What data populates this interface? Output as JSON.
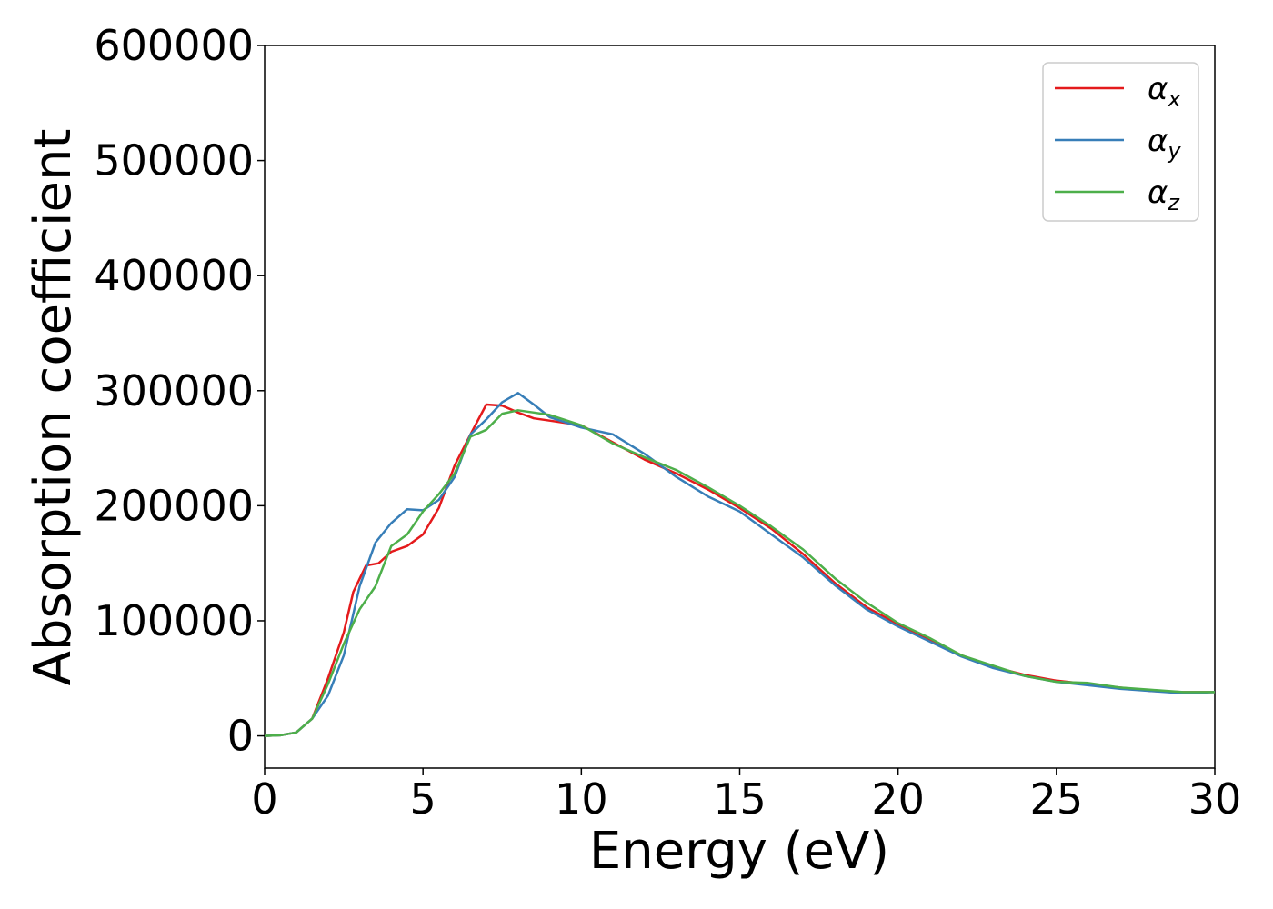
{
  "chart_data": {
    "type": "line",
    "title": "",
    "xlabel": "Energy (eV)",
    "ylabel": "Absorption coefficient",
    "xlim": [
      0,
      30
    ],
    "ylim": [
      -28000,
      600000
    ],
    "xticks": [
      0,
      5,
      10,
      15,
      20,
      25,
      30
    ],
    "xtick_labels": [
      "0",
      "5",
      "10",
      "15",
      "20",
      "25",
      "30"
    ],
    "yticks": [
      0,
      100000,
      200000,
      300000,
      400000,
      500000,
      600000
    ],
    "ytick_labels": [
      "0",
      "100000",
      "200000",
      "300000",
      "400000",
      "500000",
      "600000"
    ],
    "grid": false,
    "legend_position": "top-right",
    "series": [
      {
        "name": "α",
        "subscript": "x",
        "color": "#e41a1c",
        "points": [
          [
            0,
            0
          ],
          [
            0.5,
            500
          ],
          [
            1,
            3000
          ],
          [
            1.5,
            15000
          ],
          [
            2,
            50000
          ],
          [
            2.5,
            90000
          ],
          [
            2.8,
            125000
          ],
          [
            3.2,
            148000
          ],
          [
            3.6,
            150000
          ],
          [
            4,
            160000
          ],
          [
            4.5,
            165000
          ],
          [
            5,
            175000
          ],
          [
            5.5,
            198000
          ],
          [
            6,
            235000
          ],
          [
            6.5,
            262000
          ],
          [
            7,
            288000
          ],
          [
            7.5,
            287000
          ],
          [
            8,
            281000
          ],
          [
            8.5,
            276000
          ],
          [
            9,
            274000
          ],
          [
            10,
            270000
          ],
          [
            11,
            255000
          ],
          [
            12,
            240000
          ],
          [
            13,
            228000
          ],
          [
            14,
            214000
          ],
          [
            15,
            198000
          ],
          [
            16,
            180000
          ],
          [
            17,
            158000
          ],
          [
            18,
            133000
          ],
          [
            19,
            112000
          ],
          [
            20,
            97000
          ],
          [
            21,
            84000
          ],
          [
            22,
            70000
          ],
          [
            23,
            60000
          ],
          [
            24,
            53000
          ],
          [
            25,
            48000
          ],
          [
            26,
            45000
          ],
          [
            27,
            42000
          ],
          [
            28,
            39000
          ],
          [
            29,
            38000
          ],
          [
            30,
            38000
          ]
        ]
      },
      {
        "name": "α",
        "subscript": "y",
        "color": "#377eb8",
        "points": [
          [
            0,
            0
          ],
          [
            0.5,
            500
          ],
          [
            1,
            3000
          ],
          [
            1.5,
            15000
          ],
          [
            2,
            35000
          ],
          [
            2.5,
            70000
          ],
          [
            3,
            130000
          ],
          [
            3.5,
            168000
          ],
          [
            4,
            185000
          ],
          [
            4.5,
            197000
          ],
          [
            5,
            196000
          ],
          [
            5.5,
            205000
          ],
          [
            6,
            225000
          ],
          [
            6.5,
            262000
          ],
          [
            7,
            275000
          ],
          [
            7.5,
            290000
          ],
          [
            8,
            298000
          ],
          [
            8.5,
            288000
          ],
          [
            9,
            277000
          ],
          [
            10,
            268000
          ],
          [
            11,
            262000
          ],
          [
            12,
            245000
          ],
          [
            13,
            225000
          ],
          [
            14,
            208000
          ],
          [
            15,
            195000
          ],
          [
            16,
            175000
          ],
          [
            17,
            155000
          ],
          [
            18,
            131000
          ],
          [
            19,
            110000
          ],
          [
            20,
            95000
          ],
          [
            21,
            82000
          ],
          [
            22,
            69000
          ],
          [
            23,
            59000
          ],
          [
            24,
            52000
          ],
          [
            25,
            47000
          ],
          [
            26,
            44000
          ],
          [
            27,
            41000
          ],
          [
            28,
            39000
          ],
          [
            29,
            37000
          ],
          [
            30,
            38000
          ]
        ]
      },
      {
        "name": "α",
        "subscript": "z",
        "color": "#4daf4a",
        "points": [
          [
            0,
            0
          ],
          [
            0.5,
            500
          ],
          [
            1,
            3000
          ],
          [
            1.5,
            15000
          ],
          [
            2,
            45000
          ],
          [
            2.5,
            80000
          ],
          [
            3,
            110000
          ],
          [
            3.5,
            130000
          ],
          [
            4,
            165000
          ],
          [
            4.5,
            175000
          ],
          [
            5,
            195000
          ],
          [
            5.5,
            210000
          ],
          [
            6,
            228000
          ],
          [
            6.5,
            260000
          ],
          [
            7,
            266000
          ],
          [
            7.5,
            280000
          ],
          [
            8,
            283000
          ],
          [
            8.5,
            281000
          ],
          [
            9,
            279000
          ],
          [
            10,
            270000
          ],
          [
            11,
            254000
          ],
          [
            12,
            242000
          ],
          [
            13,
            231000
          ],
          [
            14,
            216000
          ],
          [
            15,
            200000
          ],
          [
            16,
            182000
          ],
          [
            17,
            162000
          ],
          [
            18,
            137000
          ],
          [
            19,
            116000
          ],
          [
            20,
            98000
          ],
          [
            21,
            85000
          ],
          [
            22,
            70000
          ],
          [
            23,
            61000
          ],
          [
            24,
            52000
          ],
          [
            25,
            47000
          ],
          [
            26,
            46000
          ],
          [
            27,
            42000
          ],
          [
            28,
            40000
          ],
          [
            29,
            38000
          ],
          [
            30,
            38000
          ]
        ]
      }
    ]
  }
}
